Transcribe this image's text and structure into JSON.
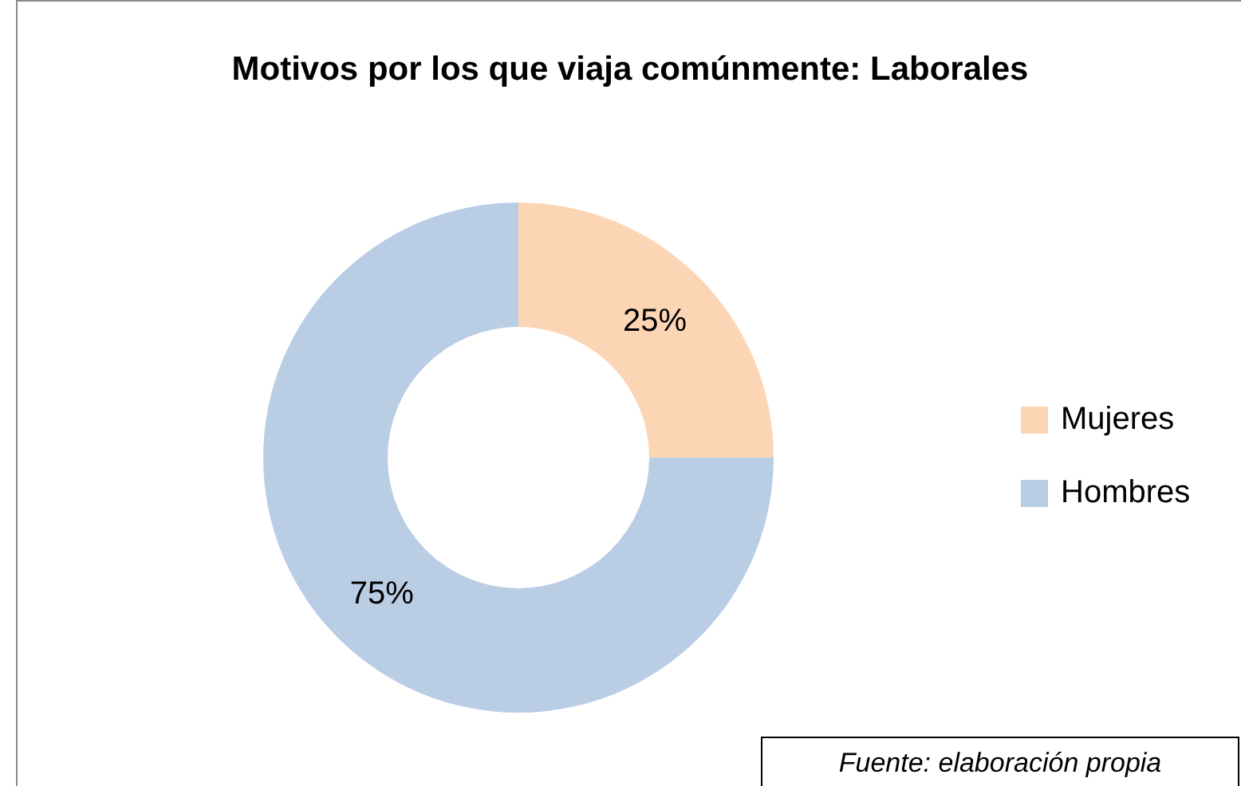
{
  "chart_data": {
    "type": "donut",
    "title": "Motivos por los que viaja comúnmente: Laborales",
    "categories": [
      "Mujeres",
      "Hombres"
    ],
    "values": [
      25,
      75
    ],
    "colors": [
      "#fcd5b5",
      "#b9cde5"
    ],
    "value_labels": [
      "25%",
      "75%"
    ],
    "legend": "right",
    "annotations": [
      "Fuente: elaboración propia"
    ]
  }
}
